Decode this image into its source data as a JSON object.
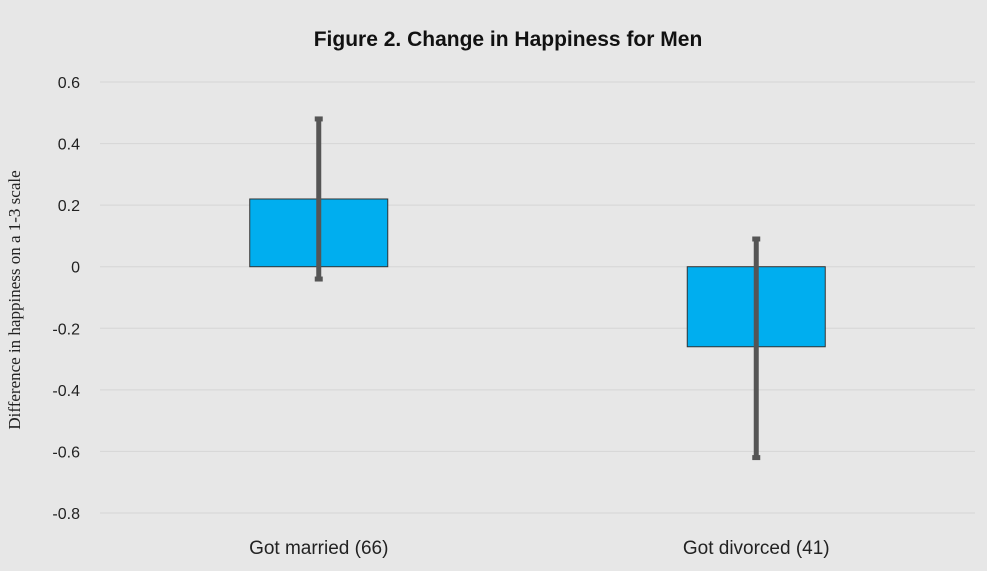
{
  "chart_data": {
    "type": "bar",
    "title": "Figure 2. Change in Happiness for Men",
    "xlabel": "",
    "ylabel": "Difference in happiness on a 1-3 scale",
    "categories": [
      "Got married (66)",
      "Got divorced (41)"
    ],
    "values": [
      0.22,
      -0.26
    ],
    "error_low": [
      -0.04,
      -0.62
    ],
    "error_high": [
      0.48,
      0.09
    ],
    "ylim": [
      -0.8,
      0.6
    ],
    "yticks": [
      0.6,
      0.4,
      0.2,
      0,
      -0.2,
      -0.4,
      -0.6,
      -0.8
    ],
    "ytick_labels": [
      "0.6",
      "0.4",
      "0.2",
      "0",
      "-0.2",
      "-0.4",
      "-0.6",
      "-0.8"
    ],
    "grid": true,
    "legend": "none",
    "colors": {
      "bar": "#00aeef",
      "error_bar": "#555555",
      "background": "#e7e7e7",
      "gridline": "#d6d6d6"
    }
  }
}
